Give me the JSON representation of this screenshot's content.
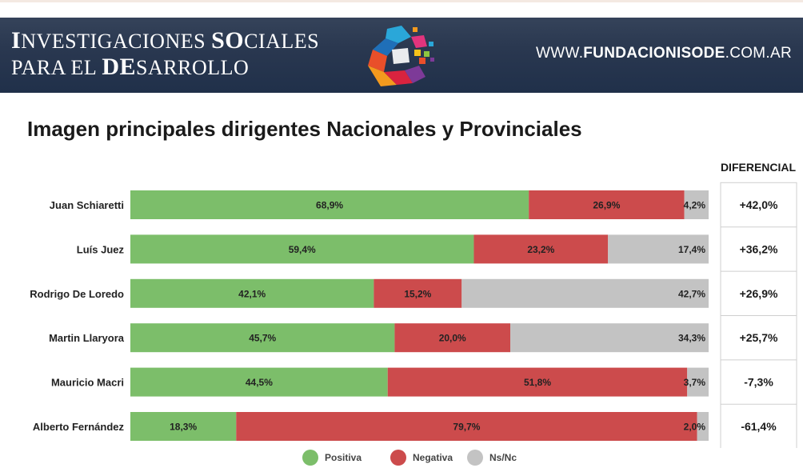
{
  "header": {
    "brand_line1_parts": [
      "I",
      "NVESTIGACIONES ",
      "SO",
      "CIALES"
    ],
    "brand_line2_parts": [
      "PARA EL ",
      "DE",
      "SARROLLO"
    ],
    "site_prefix": "WWW.",
    "site_bold": "FUNDACIONISODE",
    "site_suffix": ".COM.AR",
    "logo_icon": "isode-logo-icon"
  },
  "title": "Imagen principales dirigentes Nacionales y Provinciales",
  "chart_data": {
    "type": "bar",
    "orientation": "horizontal",
    "stacked": true,
    "normalized_to_100": true,
    "categories": [
      "Juan Schiaretti",
      "Luís Juez",
      "Rodrigo De Loredo",
      "Martin Llaryora",
      "Mauricio Macri",
      "Alberto Fernández"
    ],
    "series": [
      {
        "name": "Positiva",
        "color": "#7cbe6a",
        "values": [
          68.9,
          59.4,
          42.1,
          45.7,
          44.5,
          18.3
        ],
        "labels": [
          "68,9%",
          "59,4%",
          "42,1%",
          "45,7%",
          "44,5%",
          "18,3%"
        ]
      },
      {
        "name": "Negativa",
        "color": "#cc4b4c",
        "values": [
          26.9,
          23.2,
          15.2,
          20.0,
          51.8,
          79.7
        ],
        "labels": [
          "26,9%",
          "23,2%",
          "15,2%",
          "20,0%",
          "51,8%",
          "79,7%"
        ]
      },
      {
        "name": "Ns/Nc",
        "color": "#c3c3c3",
        "values": [
          4.2,
          17.4,
          42.7,
          34.3,
          3.7,
          2.0
        ],
        "labels": [
          "4,2%",
          "17,4%",
          "42,7%",
          "34,3%",
          "3,7%",
          "2,0%"
        ]
      }
    ],
    "differential_header": "DIFERENCIAL",
    "differential": [
      "+42,0%",
      "+36,2%",
      "+26,9%",
      "+25,7%",
      "-7,3%",
      "-61,4%"
    ],
    "legend_position": "bottom",
    "grid": false
  }
}
